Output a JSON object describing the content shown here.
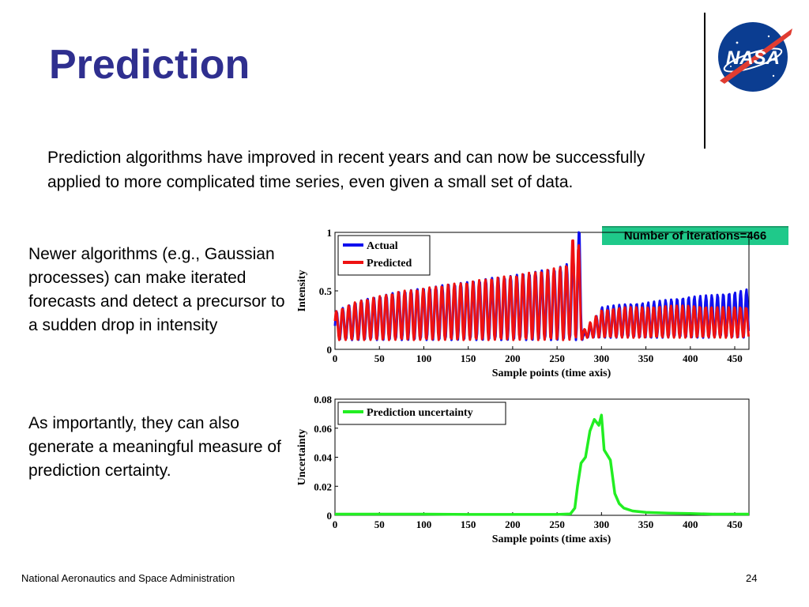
{
  "slide": {
    "title": "Prediction",
    "intro": "Prediction algorithms have improved in recent years and can now be successfully  applied to more complicated time series, even given a small set of data.",
    "side_text_1": "Newer algorithms (e.g., Gaussian processes) can make iterated forecasts and detect a precursor to a sudden drop in intensity",
    "side_text_2": "As importantly, they can also generate a meaningful measure of prediction certainty.",
    "iterations_label": "Number of iterations=466",
    "footer_org": "National Aeronautics and Space Administration",
    "page_number": "24",
    "logo_text": "NASA"
  },
  "chart_data": [
    {
      "type": "line",
      "xlabel": "Sample points (time axis)",
      "ylabel": "Intensity",
      "xlim": [
        0,
        466
      ],
      "ylim": [
        0,
        1
      ],
      "xticks": [
        "0",
        "50",
        "100",
        "150",
        "200",
        "250",
        "300",
        "350",
        "400",
        "450"
      ],
      "yticks": [
        "0",
        "0.5",
        "1"
      ],
      "legend_position": "top-left",
      "series": [
        {
          "name": "Actual",
          "color": "#1010ee",
          "x": [
            0,
            25,
            50,
            75,
            100,
            125,
            150,
            175,
            200,
            225,
            250,
            265,
            275,
            280,
            290,
            300,
            325,
            350,
            375,
            400,
            425,
            450,
            466
          ],
          "y": [
            0.22,
            0.3,
            0.34,
            0.38,
            0.4,
            0.43,
            0.45,
            0.48,
            0.5,
            0.53,
            0.56,
            0.6,
            0.9,
            0.02,
            0.1,
            0.2,
            0.22,
            0.23,
            0.25,
            0.27,
            0.28,
            0.3,
            0.32
          ]
        },
        {
          "name": "Predicted",
          "color": "#ee1111",
          "x": [
            0,
            25,
            50,
            75,
            100,
            125,
            150,
            175,
            200,
            225,
            250,
            265,
            270,
            275,
            280,
            290,
            300,
            325,
            350,
            375,
            400,
            425,
            450,
            466
          ],
          "y": [
            0.22,
            0.3,
            0.34,
            0.38,
            0.4,
            0.43,
            0.45,
            0.48,
            0.5,
            0.53,
            0.56,
            0.6,
            1.0,
            0.7,
            0.05,
            0.12,
            0.18,
            0.2,
            0.2,
            0.21,
            0.21,
            0.2,
            0.2,
            0.2
          ]
        }
      ]
    },
    {
      "type": "line",
      "xlabel": "Sample points (time axis)",
      "ylabel": "Uncertainty",
      "xlim": [
        0,
        466
      ],
      "ylim": [
        0,
        0.08
      ],
      "xticks": [
        "0",
        "50",
        "100",
        "150",
        "200",
        "250",
        "300",
        "350",
        "400",
        "450"
      ],
      "yticks": [
        "0",
        "0.02",
        "0.04",
        "0.06",
        "0.08"
      ],
      "legend_position": "top-left",
      "series": [
        {
          "name": "Prediction uncertainty",
          "color": "#22ee22",
          "x": [
            0,
            50,
            100,
            150,
            200,
            250,
            265,
            270,
            273,
            277,
            282,
            287,
            292,
            297,
            300,
            303,
            306,
            310,
            315,
            320,
            325,
            335,
            350,
            375,
            400,
            425,
            450,
            466
          ],
          "y": [
            0.0008,
            0.0008,
            0.0008,
            0.0006,
            0.0006,
            0.0006,
            0.001,
            0.005,
            0.02,
            0.036,
            0.04,
            0.058,
            0.066,
            0.062,
            0.069,
            0.045,
            0.042,
            0.038,
            0.015,
            0.008,
            0.005,
            0.003,
            0.002,
            0.0015,
            0.0012,
            0.0008,
            0.0008,
            0.0008
          ]
        }
      ]
    }
  ]
}
